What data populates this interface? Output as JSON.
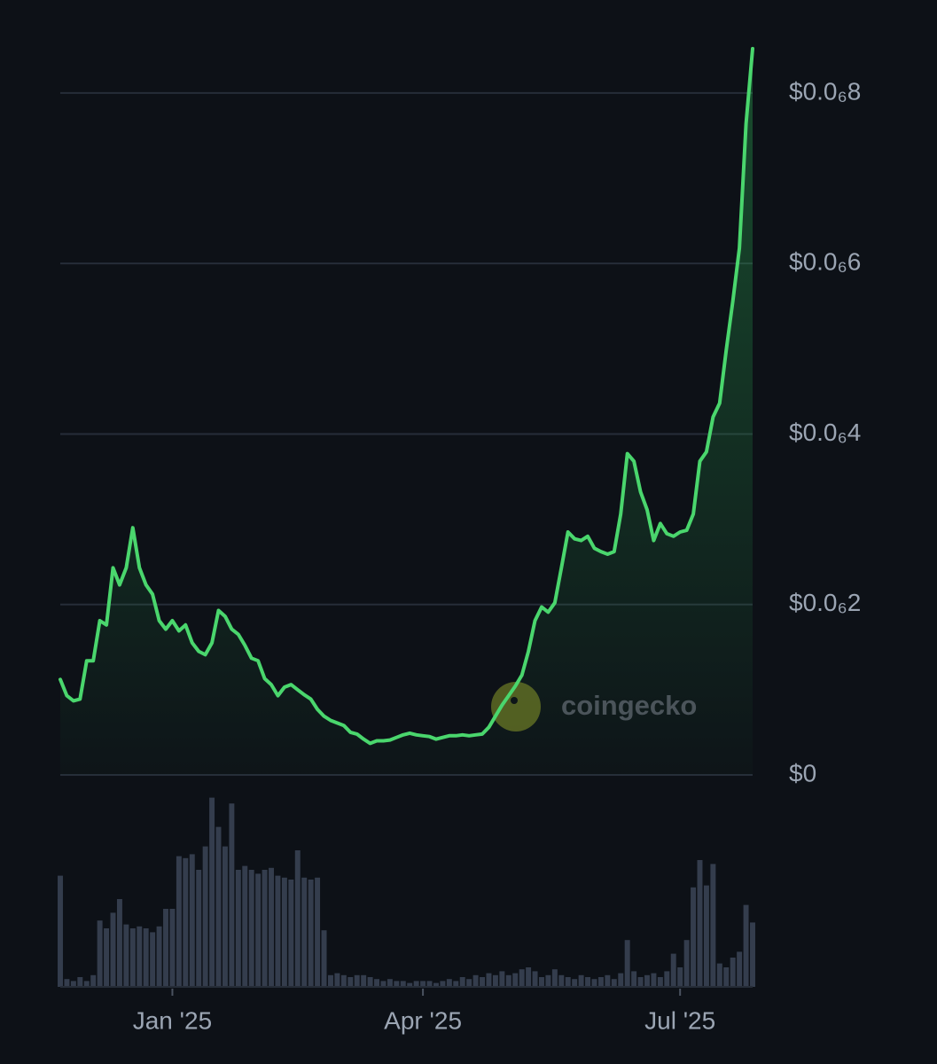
{
  "chart_data": [
    {
      "type": "line",
      "color": "#4ad66d",
      "grid": true,
      "watermark": "coingecko",
      "ylim": [
        0,
        8.8e-07
      ],
      "yticks": [
        {
          "value": 0,
          "label": "$0"
        },
        {
          "value": 2e-07,
          "label": "$0.0₆2"
        },
        {
          "value": 4e-07,
          "label": "$0.0₆4"
        },
        {
          "value": 6e-07,
          "label": "$0.0₆6"
        },
        {
          "value": 8e-07,
          "label": "$0.0₆8"
        }
      ],
      "values": [
        1.12e-07,
        9.3e-08,
        8.7e-08,
        8.9e-08,
        1.34e-07,
        1.34e-07,
        1.81e-07,
        1.76e-07,
        2.43e-07,
        2.23e-07,
        2.43e-07,
        2.9e-07,
        2.43e-07,
        2.23e-07,
        2.12e-07,
        1.81e-07,
        1.71e-07,
        1.81e-07,
        1.69e-07,
        1.76e-07,
        1.55e-07,
        1.45e-07,
        1.41e-07,
        1.55e-07,
        1.93e-07,
        1.86e-07,
        1.71e-07,
        1.65e-07,
        1.52e-07,
        1.37e-07,
        1.34e-07,
        1.13e-07,
        1.06e-07,
        9.3e-08,
        1.03e-07,
        1.06e-07,
        1e-07,
        9.4e-08,
        8.9e-08,
        7.7e-08,
        6.9e-08,
        6.4e-08,
        6.1e-08,
        5.8e-08,
        5e-08,
        4.8e-08,
        4.2e-08,
        3.7e-08,
        4e-08,
        4e-08,
        4.1e-08,
        4.4e-08,
        4.7e-08,
        4.9e-08,
        4.7e-08,
        4.6e-08,
        4.5e-08,
        4.2e-08,
        4.4e-08,
        4.6e-08,
        4.6e-08,
        4.7e-08,
        4.6e-08,
        4.7e-08,
        4.8e-08,
        5.6e-08,
        6.9e-08,
        8.2e-08,
        9.3e-08,
        1.04e-07,
        1.17e-07,
        1.45e-07,
        1.81e-07,
        1.97e-07,
        1.91e-07,
        2.02e-07,
        2.43e-07,
        2.85e-07,
        2.77e-07,
        2.75e-07,
        2.8e-07,
        2.66e-07,
        2.62e-07,
        2.59e-07,
        2.62e-07,
        3.06e-07,
        3.77e-07,
        3.68e-07,
        3.32e-07,
        3.11e-07,
        2.75e-07,
        2.95e-07,
        2.83e-07,
        2.8e-07,
        2.85e-07,
        2.87e-07,
        3.06e-07,
        3.68e-07,
        3.79e-07,
        4.2e-07,
        4.36e-07,
        4.98e-07,
        5.56e-07,
        6.18e-07,
        7.64e-07,
        8.52e-07
      ]
    },
    {
      "type": "bar",
      "color": "#343d4d",
      "ylim": [
        0,
        100
      ],
      "categories": [
        null,
        null,
        null,
        null,
        null,
        null,
        null,
        null,
        null,
        null,
        null,
        null,
        null,
        null,
        null,
        null,
        null,
        "Jan '25",
        null,
        null,
        null,
        null,
        null,
        null,
        null,
        null,
        null,
        null,
        null,
        null,
        null,
        null,
        null,
        null,
        null,
        null,
        null,
        null,
        null,
        null,
        null,
        null,
        null,
        null,
        null,
        null,
        null,
        null,
        null,
        null,
        null,
        null,
        null,
        null,
        null,
        "Apr '25",
        null,
        null,
        null,
        null,
        null,
        null,
        null,
        null,
        null,
        null,
        null,
        null,
        null,
        null,
        null,
        null,
        null,
        null,
        null,
        null,
        null,
        null,
        null,
        null,
        null,
        null,
        null,
        null,
        null,
        null,
        null,
        null,
        null,
        null,
        null,
        null,
        null,
        null,
        "Jul '25",
        null,
        null,
        null,
        null,
        null,
        null,
        null,
        null,
        null,
        null,
        null
      ],
      "values": [
        57,
        4,
        3,
        5,
        3,
        6,
        34,
        30,
        38,
        45,
        32,
        30,
        31,
        30,
        28,
        31,
        40,
        40,
        67,
        66,
        68,
        60,
        72,
        97,
        82,
        72,
        94,
        60,
        62,
        60,
        58,
        60,
        61,
        57,
        56,
        55,
        70,
        56,
        55,
        56,
        29,
        6,
        7,
        6,
        5,
        6,
        6,
        5,
        4,
        3,
        4,
        3,
        3,
        2,
        3,
        3,
        3,
        2,
        3,
        4,
        3,
        5,
        4,
        6,
        5,
        7,
        6,
        8,
        6,
        7,
        9,
        10,
        8,
        5,
        6,
        9,
        6,
        5,
        4,
        6,
        5,
        4,
        5,
        6,
        4,
        7,
        24,
        8,
        5,
        6,
        7,
        5,
        8,
        17,
        10,
        24,
        51,
        65,
        52,
        63,
        12,
        10,
        15,
        18,
        42,
        33
      ]
    }
  ]
}
